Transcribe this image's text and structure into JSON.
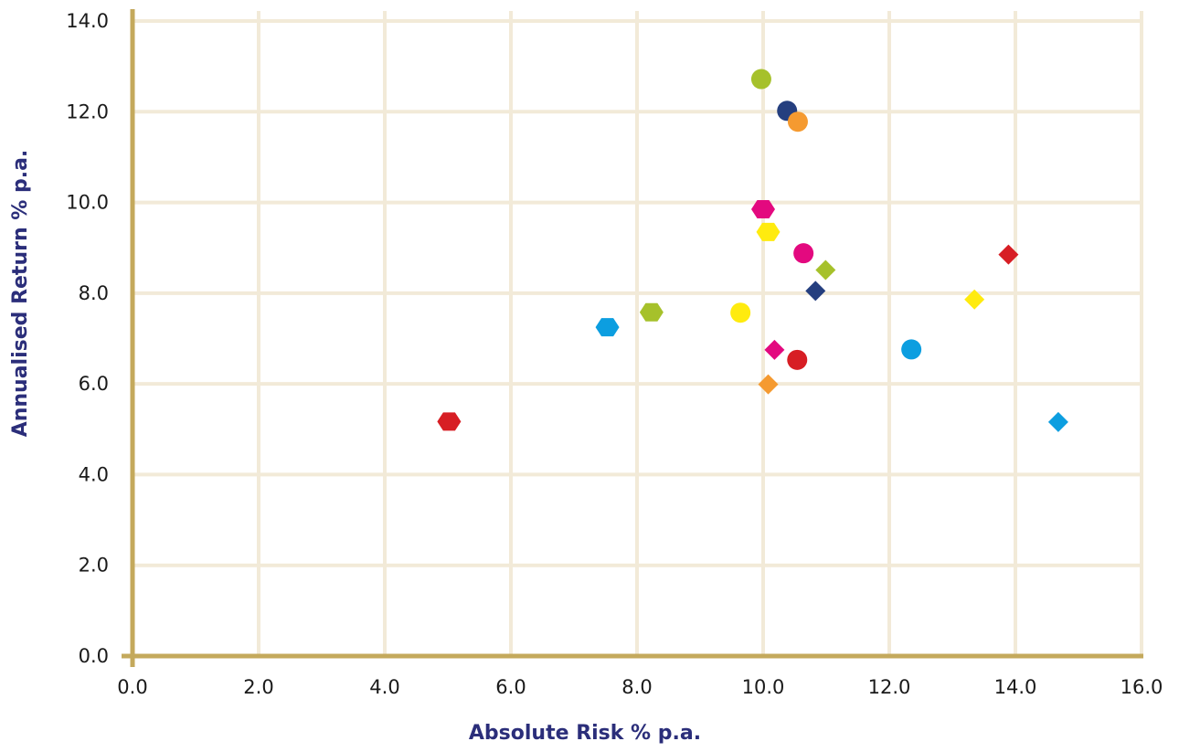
{
  "chart_data": {
    "type": "scatter",
    "title": "",
    "xlabel": "Absolute Risk % p.a.",
    "ylabel": "Annualised Return % p.a.",
    "xlim": [
      0,
      16
    ],
    "ylim": [
      0,
      14
    ],
    "x_ticks": [
      "0.0",
      "2.0",
      "4.0",
      "6.0",
      "8.0",
      "10.0",
      "12.0",
      "14.0",
      "16.0"
    ],
    "y_ticks": [
      "0.0",
      "2.0",
      "4.0",
      "6.0",
      "8.0",
      "10.0",
      "12.0",
      "14.0"
    ],
    "grid": true,
    "legend": "none",
    "colors": {
      "grid": "#f2ead8",
      "axis": "#c4a95c",
      "axis_title": "#2b2e7a",
      "tick_text": "#1a1a1a"
    },
    "points": [
      {
        "x": 9.97,
        "y": 12.72,
        "marker": "circle",
        "color": "#a6c12b"
      },
      {
        "x": 10.38,
        "y": 12.02,
        "marker": "circle",
        "color": "#253f7f"
      },
      {
        "x": 10.55,
        "y": 11.78,
        "marker": "circle",
        "color": "#f59a30"
      },
      {
        "x": 10.0,
        "y": 9.85,
        "marker": "hexagon",
        "color": "#e3097f"
      },
      {
        "x": 10.08,
        "y": 9.35,
        "marker": "hexagon",
        "color": "#ffeb0f"
      },
      {
        "x": 10.64,
        "y": 8.88,
        "marker": "circle",
        "color": "#e3097f"
      },
      {
        "x": 10.99,
        "y": 8.51,
        "marker": "diamond",
        "color": "#a6c12b"
      },
      {
        "x": 13.89,
        "y": 8.85,
        "marker": "diamond",
        "color": "#d71e24"
      },
      {
        "x": 10.83,
        "y": 8.05,
        "marker": "diamond",
        "color": "#253f7f"
      },
      {
        "x": 13.35,
        "y": 7.86,
        "marker": "diamond",
        "color": "#ffeb0f"
      },
      {
        "x": 8.23,
        "y": 7.58,
        "marker": "hexagon",
        "color": "#a6c12b"
      },
      {
        "x": 9.64,
        "y": 7.57,
        "marker": "circle",
        "color": "#ffeb0f"
      },
      {
        "x": 7.53,
        "y": 7.25,
        "marker": "hexagon",
        "color": "#0c9ee0"
      },
      {
        "x": 10.18,
        "y": 6.75,
        "marker": "diamond",
        "color": "#e3097f"
      },
      {
        "x": 12.35,
        "y": 6.76,
        "marker": "circle",
        "color": "#0c9ee0"
      },
      {
        "x": 10.54,
        "y": 6.53,
        "marker": "circle",
        "color": "#d71e24"
      },
      {
        "x": 10.08,
        "y": 5.99,
        "marker": "diamond",
        "color": "#f59a30"
      },
      {
        "x": 5.02,
        "y": 5.17,
        "marker": "hexagon",
        "color": "#d71e24"
      },
      {
        "x": 14.68,
        "y": 5.16,
        "marker": "diamond",
        "color": "#0c9ee0"
      }
    ]
  }
}
